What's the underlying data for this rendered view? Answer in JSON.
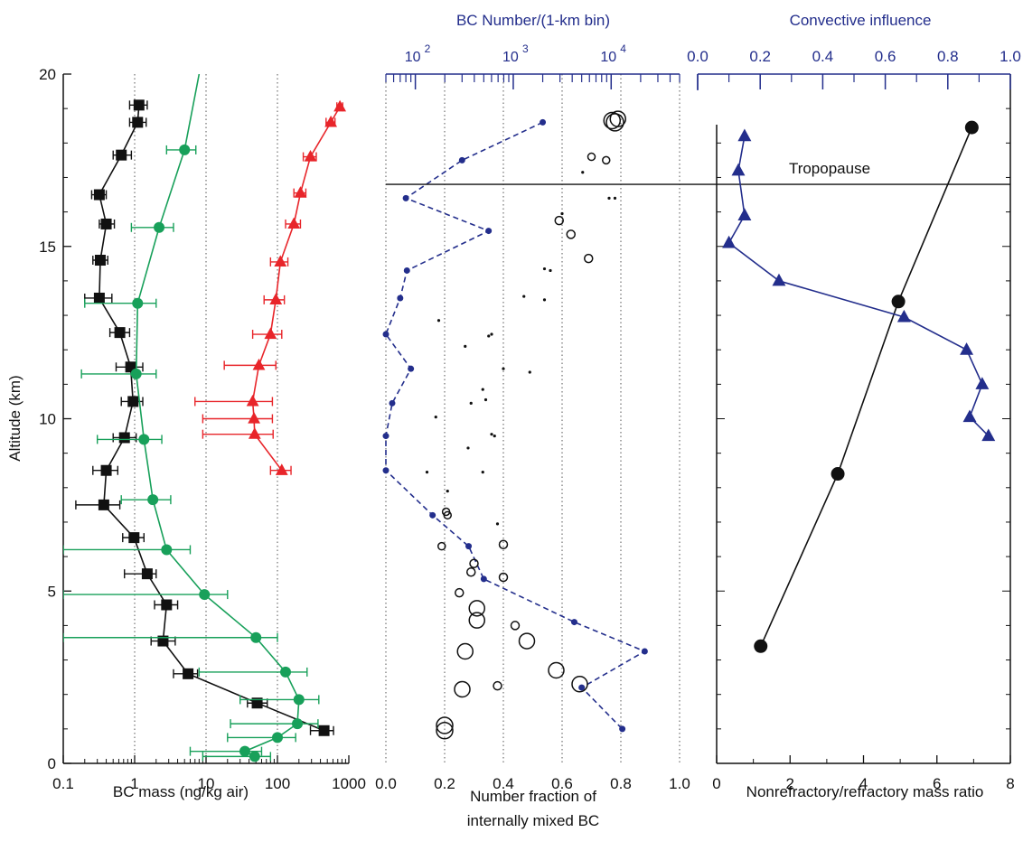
{
  "chart_data": [
    {
      "type": "scatter",
      "xlabel": "BC mass (ng/kg air)",
      "ylabel": "Altitude (km)",
      "xscale": "log",
      "xlim": [
        0.1,
        1000
      ],
      "ylim": [
        0,
        20
      ],
      "x_ticks": [
        0.1,
        1,
        10,
        100,
        1000
      ],
      "x_tick_labels": [
        "0.1",
        "1",
        "10",
        "100",
        "1000"
      ],
      "y_ticks": [
        0,
        5,
        10,
        15,
        20
      ],
      "y_tick_labels": [
        "0",
        "5",
        "10",
        "15",
        "20"
      ],
      "grid": "vertical dotted",
      "series": [
        {
          "color": "#111111",
          "marker": "square",
          "line": "solid",
          "points": [
            {
              "x": 1.15,
              "y": 19.1,
              "lo": 0.85,
              "hi": 1.5
            },
            {
              "x": 1.1,
              "y": 18.6,
              "lo": 0.85,
              "hi": 1.45
            },
            {
              "x": 0.65,
              "y": 17.65,
              "lo": 0.5,
              "hi": 0.9
            },
            {
              "x": 0.32,
              "y": 16.5,
              "lo": 0.25,
              "hi": 0.4
            },
            {
              "x": 0.4,
              "y": 15.65,
              "lo": 0.32,
              "hi": 0.52
            },
            {
              "x": 0.33,
              "y": 14.6,
              "lo": 0.26,
              "hi": 0.42
            },
            {
              "x": 0.32,
              "y": 13.5,
              "lo": 0.2,
              "hi": 0.48
            },
            {
              "x": 0.62,
              "y": 12.5,
              "lo": 0.45,
              "hi": 0.85
            },
            {
              "x": 0.88,
              "y": 11.5,
              "lo": 0.55,
              "hi": 1.3
            },
            {
              "x": 0.95,
              "y": 10.5,
              "lo": 0.65,
              "hi": 1.3
            },
            {
              "x": 0.72,
              "y": 9.45,
              "lo": 0.5,
              "hi": 1.05
            },
            {
              "x": 0.4,
              "y": 8.5,
              "lo": 0.26,
              "hi": 0.58
            },
            {
              "x": 0.37,
              "y": 7.5,
              "lo": 0.15,
              "hi": 0.62
            },
            {
              "x": 0.98,
              "y": 6.55,
              "lo": 0.68,
              "hi": 1.35
            },
            {
              "x": 1.5,
              "y": 5.5,
              "lo": 0.72,
              "hi": 2.0
            },
            {
              "x": 2.8,
              "y": 4.6,
              "lo": 1.9,
              "hi": 4.0
            },
            {
              "x": 2.5,
              "y": 3.55,
              "lo": 1.7,
              "hi": 3.7
            },
            {
              "x": 5.6,
              "y": 2.6,
              "lo": 3.5,
              "hi": 7.6
            },
            {
              "x": 52,
              "y": 1.75,
              "lo": 38,
              "hi": 72
            },
            {
              "x": 450,
              "y": 0.95,
              "lo": 290,
              "hi": 610
            }
          ]
        },
        {
          "color": "#18a05a",
          "marker": "circle",
          "line": "solid",
          "points": [
            {
              "x": 5.0,
              "y": 17.8,
              "lo": 2.8,
              "hi": 7.2
            },
            {
              "x": 2.2,
              "y": 15.55,
              "lo": 0.9,
              "hi": 3.5
            },
            {
              "x": 1.1,
              "y": 13.35,
              "lo": 0.2,
              "hi": 2.0
            },
            {
              "x": 1.05,
              "y": 11.3,
              "lo": 0.18,
              "hi": 2.0
            },
            {
              "x": 1.35,
              "y": 9.4,
              "lo": 0.3,
              "hi": 2.4
            },
            {
              "x": 1.8,
              "y": 7.65,
              "lo": 0.65,
              "hi": 3.2
            },
            {
              "x": 2.8,
              "y": 6.2,
              "lo": 0.1,
              "hi": 6.0
            },
            {
              "x": 9.5,
              "y": 4.9,
              "lo": 0.1,
              "hi": 20
            },
            {
              "x": 50,
              "y": 3.65,
              "lo": 0.1,
              "hi": 100
            },
            {
              "x": 130,
              "y": 2.65,
              "lo": 8,
              "hi": 260
            },
            {
              "x": 200,
              "y": 1.85,
              "lo": 30,
              "hi": 380
            },
            {
              "x": 190,
              "y": 1.15,
              "lo": 22,
              "hi": 370
            },
            {
              "x": 100,
              "y": 0.75,
              "lo": 20,
              "hi": 180
            },
            {
              "x": 35,
              "y": 0.35,
              "lo": 6,
              "hi": 60
            },
            {
              "x": 48,
              "y": 0.2,
              "lo": 9,
              "hi": 80
            }
          ],
          "top_line_end": {
            "x": 8.0,
            "y": 20
          }
        },
        {
          "color": "#e8252a",
          "marker": "triangle",
          "line": "solid",
          "points": [
            {
              "x": 750,
              "y": 19.05,
              "lo": 680,
              "hi": 820
            },
            {
              "x": 560,
              "y": 18.6,
              "lo": 480,
              "hi": 640
            },
            {
              "x": 290,
              "y": 17.6,
              "lo": 230,
              "hi": 350
            },
            {
              "x": 210,
              "y": 16.55,
              "lo": 170,
              "hi": 250
            },
            {
              "x": 170,
              "y": 15.65,
              "lo": 130,
              "hi": 210
            },
            {
              "x": 110,
              "y": 14.55,
              "lo": 80,
              "hi": 140
            },
            {
              "x": 95,
              "y": 13.45,
              "lo": 65,
              "hi": 125
            },
            {
              "x": 80,
              "y": 12.45,
              "lo": 45,
              "hi": 115
            },
            {
              "x": 55,
              "y": 11.55,
              "lo": 18,
              "hi": 95
            },
            {
              "x": 45,
              "y": 10.5,
              "lo": 7,
              "hi": 85
            },
            {
              "x": 47,
              "y": 10.0,
              "lo": 9,
              "hi": 85
            },
            {
              "x": 48,
              "y": 9.55,
              "lo": 9,
              "hi": 87
            },
            {
              "x": 115,
              "y": 8.5,
              "lo": 80,
              "hi": 155
            }
          ]
        }
      ]
    },
    {
      "type": "scatter",
      "xlabel": "Number fraction of internally mixed BC",
      "xlabel_lines": [
        "Number fraction of",
        "internally mixed BC"
      ],
      "top_xlabel": "BC Number/(1-km bin)",
      "xlim": [
        0,
        1
      ],
      "ylim": [
        0,
        20
      ],
      "x_ticks": [
        0,
        0.2,
        0.4,
        0.6,
        0.8,
        1.0
      ],
      "x_tick_labels": [
        "0.0",
        "0.2",
        "0.4",
        "0.6",
        "0.8",
        "1.0"
      ],
      "top_xscale": "log",
      "top_xlim": [
        50,
        50000
      ],
      "top_x_ticks": [
        100,
        1000,
        10000
      ],
      "top_x_tick_labels": [
        "10",
        "10",
        "10"
      ],
      "top_x_tick_exponents": [
        "2",
        "3",
        "4"
      ],
      "grid": "vertical dotted",
      "circles_fraction": [
        {
          "x": 0.77,
          "y": 18.65,
          "size": 9
        },
        {
          "x": 0.78,
          "y": 18.6,
          "size": 9.5
        },
        {
          "x": 0.79,
          "y": 18.7,
          "size": 8.5
        },
        {
          "x": 0.7,
          "y": 17.6,
          "size": 4
        },
        {
          "x": 0.75,
          "y": 17.5,
          "size": 4
        },
        {
          "x": 0.67,
          "y": 17.15,
          "size": 1.5
        },
        {
          "x": 0.76,
          "y": 16.4,
          "size": 1.5
        },
        {
          "x": 0.78,
          "y": 16.4,
          "size": 1.5
        },
        {
          "x": 0.59,
          "y": 15.75,
          "size": 4.5
        },
        {
          "x": 0.6,
          "y": 15.95,
          "size": 1.5
        },
        {
          "x": 0.63,
          "y": 15.35,
          "size": 4.5
        },
        {
          "x": 0.69,
          "y": 14.65,
          "size": 4.5
        },
        {
          "x": 0.54,
          "y": 14.35,
          "size": 1.5
        },
        {
          "x": 0.56,
          "y": 14.3,
          "size": 1.5
        },
        {
          "x": 0.47,
          "y": 13.55,
          "size": 1.5
        },
        {
          "x": 0.54,
          "y": 13.45,
          "size": 1.5
        },
        {
          "x": 0.18,
          "y": 12.85,
          "size": 1.5
        },
        {
          "x": 0.35,
          "y": 12.4,
          "size": 1.5
        },
        {
          "x": 0.36,
          "y": 12.45,
          "size": 1.5
        },
        {
          "x": 0.27,
          "y": 12.1,
          "size": 1.5
        },
        {
          "x": 0.4,
          "y": 11.45,
          "size": 1.5
        },
        {
          "x": 0.49,
          "y": 11.35,
          "size": 1.5
        },
        {
          "x": 0.33,
          "y": 10.85,
          "size": 1.5
        },
        {
          "x": 0.34,
          "y": 10.55,
          "size": 1.5
        },
        {
          "x": 0.29,
          "y": 10.45,
          "size": 1.5
        },
        {
          "x": 0.17,
          "y": 10.05,
          "size": 1.5
        },
        {
          "x": 0.36,
          "y": 9.55,
          "size": 1.5
        },
        {
          "x": 0.37,
          "y": 9.5,
          "size": 1.5
        },
        {
          "x": 0.28,
          "y": 9.15,
          "size": 1.5
        },
        {
          "x": 0.14,
          "y": 8.45,
          "size": 1.5
        },
        {
          "x": 0.33,
          "y": 8.45,
          "size": 1.5
        },
        {
          "x": 0.21,
          "y": 7.9,
          "size": 1.5
        },
        {
          "x": 0.21,
          "y": 7.2,
          "size": 4
        },
        {
          "x": 0.205,
          "y": 7.3,
          "size": 4
        },
        {
          "x": 0.38,
          "y": 6.95,
          "size": 1.5
        },
        {
          "x": 0.19,
          "y": 6.3,
          "size": 4
        },
        {
          "x": 0.4,
          "y": 6.35,
          "size": 4.5
        },
        {
          "x": 0.3,
          "y": 5.8,
          "size": 4.5
        },
        {
          "x": 0.29,
          "y": 5.55,
          "size": 4.5
        },
        {
          "x": 0.4,
          "y": 5.4,
          "size": 4.5
        },
        {
          "x": 0.25,
          "y": 4.95,
          "size": 4.5
        },
        {
          "x": 0.31,
          "y": 4.5,
          "size": 8.5
        },
        {
          "x": 0.31,
          "y": 4.15,
          "size": 8.5
        },
        {
          "x": 0.44,
          "y": 4.0,
          "size": 4.5
        },
        {
          "x": 0.48,
          "y": 3.55,
          "size": 8.5
        },
        {
          "x": 0.27,
          "y": 3.25,
          "size": 8.5
        },
        {
          "x": 0.58,
          "y": 2.7,
          "size": 8.5
        },
        {
          "x": 0.66,
          "y": 2.3,
          "size": 8.5
        },
        {
          "x": 0.38,
          "y": 2.25,
          "size": 4.5
        },
        {
          "x": 0.26,
          "y": 2.15,
          "size": 8.5
        },
        {
          "x": 0.2,
          "y": 1.1,
          "size": 9
        },
        {
          "x": 0.2,
          "y": 0.95,
          "size": 9
        }
      ],
      "blue_dashed_number": [
        {
          "x": 2000,
          "y": 18.6
        },
        {
          "x": 300,
          "y": 17.5
        },
        {
          "x": 80,
          "y": 16.4
        },
        {
          "x": 560,
          "y": 15.45
        },
        {
          "x": 82,
          "y": 14.3
        },
        {
          "x": 70,
          "y": 13.5
        },
        {
          "x": 50,
          "y": 12.45
        },
        {
          "x": 90,
          "y": 11.45
        },
        {
          "x": 58,
          "y": 10.45
        },
        {
          "x": 50,
          "y": 9.5
        },
        {
          "x": 50,
          "y": 8.5
        },
        {
          "x": 150,
          "y": 7.2
        },
        {
          "x": 350,
          "y": 6.3
        },
        {
          "x": 500,
          "y": 5.35
        },
        {
          "x": 4200,
          "y": 4.1
        },
        {
          "x": 22000,
          "y": 3.25
        },
        {
          "x": 5000,
          "y": 2.2
        },
        {
          "x": 13000,
          "y": 1.0
        }
      ]
    },
    {
      "type": "line",
      "xlabel": "Nonrefractory/refractory mass ratio",
      "top_xlabel": "Convective influence",
      "xlim": [
        0,
        8
      ],
      "ylim": [
        0,
        20
      ],
      "x_ticks": [
        0,
        2,
        4,
        6,
        8
      ],
      "x_tick_labels": [
        "0",
        "2",
        "4",
        "6",
        "8"
      ],
      "top_xlim": [
        0,
        1
      ],
      "top_x_ticks": [
        0,
        0.2,
        0.4,
        0.6,
        0.8,
        1.0
      ],
      "top_x_tick_labels": [
        "0.0",
        "0.2",
        "0.4",
        "0.6",
        "0.8",
        "1.0"
      ],
      "annotation": "Tropopause",
      "tropopause_altitude": 16.8,
      "ratio_series": {
        "color": "#111111",
        "marker": "circle",
        "points": [
          {
            "x": 6.95,
            "y": 18.45
          },
          {
            "x": 4.95,
            "y": 13.4
          },
          {
            "x": 3.3,
            "y": 8.4
          },
          {
            "x": 1.2,
            "y": 3.4
          }
        ]
      },
      "convective_series": {
        "color": "#232e8c",
        "marker": "triangle",
        "points": [
          {
            "x": 0.15,
            "y": 18.2
          },
          {
            "x": 0.13,
            "y": 17.2
          },
          {
            "x": 0.15,
            "y": 15.9
          },
          {
            "x": 0.1,
            "y": 15.1
          },
          {
            "x": 0.26,
            "y": 14.0
          },
          {
            "x": 0.66,
            "y": 12.95
          },
          {
            "x": 0.86,
            "y": 12.0
          },
          {
            "x": 0.91,
            "y": 11.0
          },
          {
            "x": 0.87,
            "y": 10.05
          },
          {
            "x": 0.93,
            "y": 9.5
          }
        ]
      }
    }
  ]
}
